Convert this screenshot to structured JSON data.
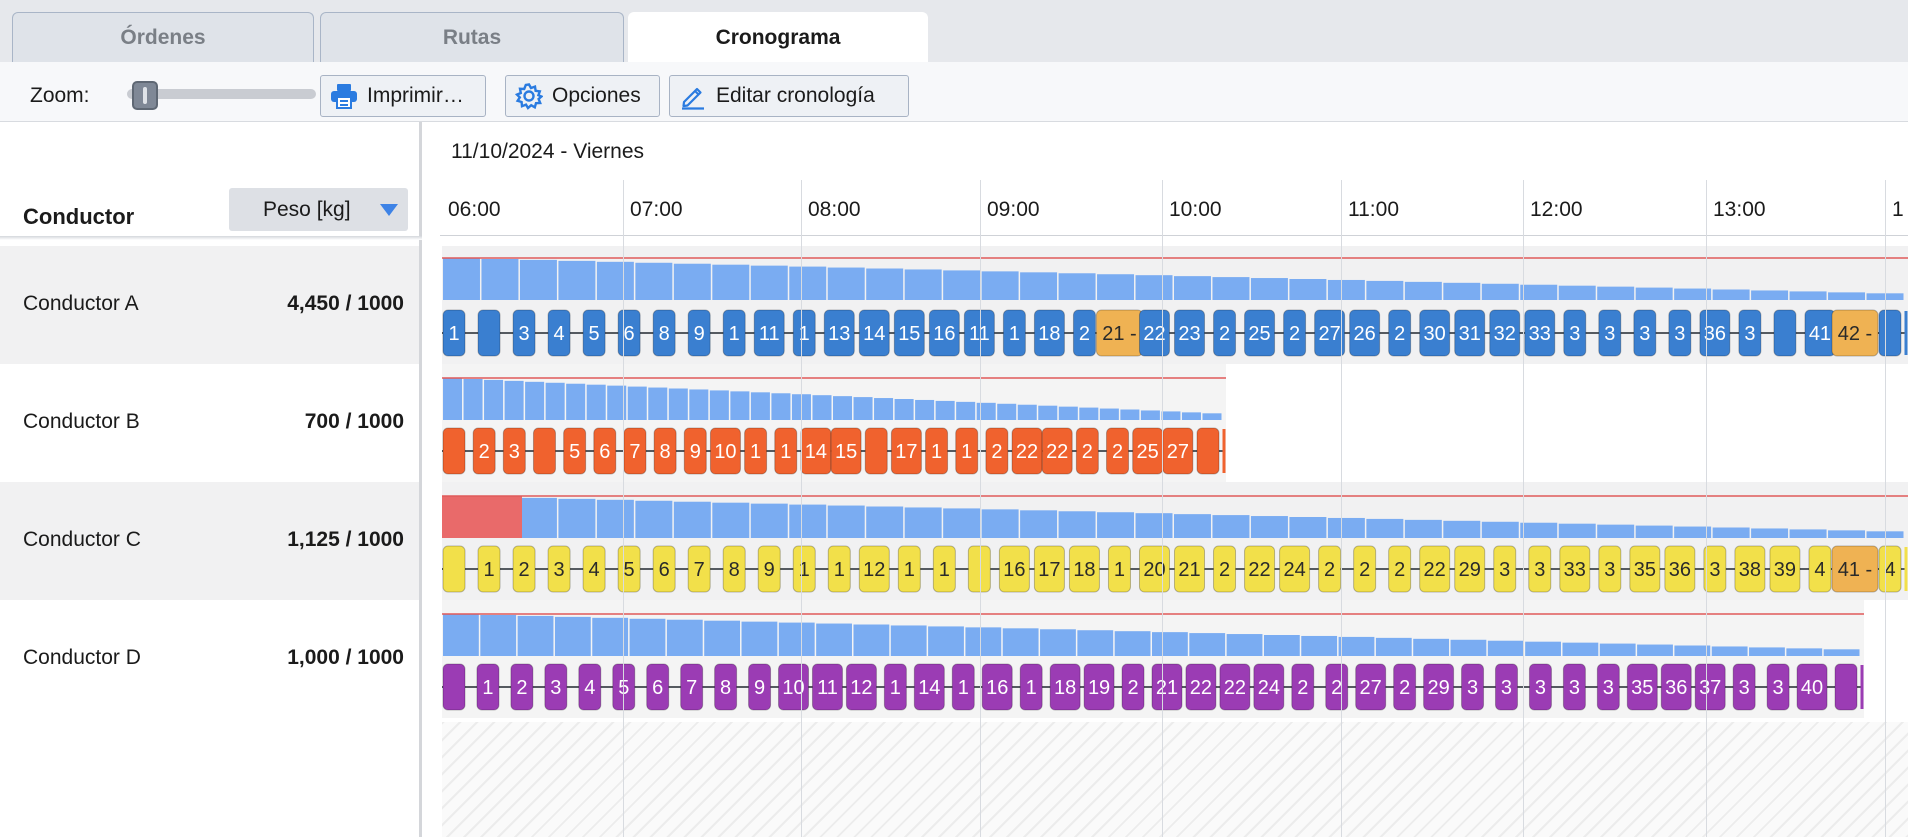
{
  "tabs": [
    {
      "label": "Órdenes"
    },
    {
      "label": "Rutas"
    },
    {
      "label": "Cronograma"
    }
  ],
  "toolbar": {
    "zoom_label": "Zoom:",
    "zoom_value": 0.05,
    "print_label": "Imprimir…",
    "options_label": "Opciones",
    "edit_label": "Editar cronología"
  },
  "left_panel": {
    "driver_header": "Conductor",
    "metric_select": "Peso [kg]"
  },
  "drivers": [
    {
      "name": "Conductor A",
      "load": "4,450 / 1000"
    },
    {
      "name": "Conductor B",
      "load": "700 / 1000"
    },
    {
      "name": "Conductor C",
      "load": "1,125 / 1000"
    },
    {
      "name": "Conductor D",
      "load": "1,000 / 1000"
    }
  ],
  "timeline": {
    "date": "11/10/2024 - Viernes",
    "hours": [
      "06:00",
      "07:00",
      "08:00",
      "09:00",
      "10:00",
      "11:00",
      "12:00",
      "13:00",
      "1"
    ]
  },
  "colors": {
    "route_a": "#3a7fd0",
    "route_b": "#f0622e",
    "route_c": "#f2e04a",
    "route_d": "#9b3cb4",
    "highlight": "#efb253",
    "load_bar": "#7aacf2",
    "overload": "#e96a6a",
    "capacity_line": "#e05a5a"
  },
  "routes": [
    {
      "driver": "Conductor A",
      "stops": [
        {
          "label": "1"
        },
        {
          "label": ""
        },
        {
          "label": "3"
        },
        {
          "label": "4"
        },
        {
          "label": "5"
        },
        {
          "label": "6"
        },
        {
          "label": "8"
        },
        {
          "label": "9"
        },
        {
          "label": "1"
        },
        {
          "label": "11"
        },
        {
          "label": "1"
        },
        {
          "label": "13"
        },
        {
          "label": "14"
        },
        {
          "label": "15"
        },
        {
          "label": "16"
        },
        {
          "label": "11"
        },
        {
          "label": "1"
        },
        {
          "label": "18"
        },
        {
          "label": "2"
        },
        {
          "label": "21 -",
          "highlight": true
        },
        {
          "label": "22"
        },
        {
          "label": "23"
        },
        {
          "label": "2"
        },
        {
          "label": "25"
        },
        {
          "label": "2"
        },
        {
          "label": "27"
        },
        {
          "label": "26"
        },
        {
          "label": "2"
        },
        {
          "label": "30"
        },
        {
          "label": "31"
        },
        {
          "label": "32"
        },
        {
          "label": "33"
        },
        {
          "label": "3"
        },
        {
          "label": "3"
        },
        {
          "label": "3"
        },
        {
          "label": "3"
        },
        {
          "label": "36"
        },
        {
          "label": "3"
        },
        {
          "label": ""
        },
        {
          "label": "41"
        },
        {
          "label": "42 -",
          "highlight": true
        },
        {
          "label": ""
        }
      ]
    },
    {
      "driver": "Conductor B",
      "stops": [
        {
          "label": ""
        },
        {
          "label": "2"
        },
        {
          "label": "3"
        },
        {
          "label": ""
        },
        {
          "label": "5"
        },
        {
          "label": "6"
        },
        {
          "label": "7"
        },
        {
          "label": "8"
        },
        {
          "label": "9"
        },
        {
          "label": "10"
        },
        {
          "label": "1"
        },
        {
          "label": "1"
        },
        {
          "label": "14"
        },
        {
          "label": "15"
        },
        {
          "label": ""
        },
        {
          "label": "17"
        },
        {
          "label": "1"
        },
        {
          "label": "1"
        },
        {
          "label": "2"
        },
        {
          "label": "22"
        },
        {
          "label": "22"
        },
        {
          "label": "2"
        },
        {
          "label": "2"
        },
        {
          "label": "25"
        },
        {
          "label": "27"
        },
        {
          "label": ""
        }
      ]
    },
    {
      "driver": "Conductor C",
      "stops": [
        {
          "label": ""
        },
        {
          "label": "1"
        },
        {
          "label": "2"
        },
        {
          "label": "3"
        },
        {
          "label": "4"
        },
        {
          "label": "5"
        },
        {
          "label": "6"
        },
        {
          "label": "7"
        },
        {
          "label": "8"
        },
        {
          "label": "9"
        },
        {
          "label": "1"
        },
        {
          "label": "1"
        },
        {
          "label": "12"
        },
        {
          "label": "1"
        },
        {
          "label": "1"
        },
        {
          "label": ""
        },
        {
          "label": "16"
        },
        {
          "label": "17"
        },
        {
          "label": "18"
        },
        {
          "label": "1"
        },
        {
          "label": "20"
        },
        {
          "label": "21"
        },
        {
          "label": "2"
        },
        {
          "label": "22"
        },
        {
          "label": "24"
        },
        {
          "label": "2"
        },
        {
          "label": "2"
        },
        {
          "label": "2"
        },
        {
          "label": "22"
        },
        {
          "label": "29"
        },
        {
          "label": "3"
        },
        {
          "label": "3"
        },
        {
          "label": "33"
        },
        {
          "label": "3"
        },
        {
          "label": "35"
        },
        {
          "label": "36"
        },
        {
          "label": "3"
        },
        {
          "label": "38"
        },
        {
          "label": "39"
        },
        {
          "label": "4"
        },
        {
          "label": "41 -",
          "highlight": true
        },
        {
          "label": "4"
        }
      ]
    },
    {
      "driver": "Conductor D",
      "stops": [
        {
          "label": ""
        },
        {
          "label": "1"
        },
        {
          "label": "2"
        },
        {
          "label": "3"
        },
        {
          "label": "4"
        },
        {
          "label": "5"
        },
        {
          "label": "6"
        },
        {
          "label": "7"
        },
        {
          "label": "8"
        },
        {
          "label": "9"
        },
        {
          "label": "10"
        },
        {
          "label": "11"
        },
        {
          "label": "12"
        },
        {
          "label": "1"
        },
        {
          "label": "14"
        },
        {
          "label": "1"
        },
        {
          "label": "16"
        },
        {
          "label": "1"
        },
        {
          "label": "18"
        },
        {
          "label": "19"
        },
        {
          "label": "2"
        },
        {
          "label": "21"
        },
        {
          "label": "22"
        },
        {
          "label": "22"
        },
        {
          "label": "24"
        },
        {
          "label": "2"
        },
        {
          "label": "2"
        },
        {
          "label": "27"
        },
        {
          "label": "2"
        },
        {
          "label": "29"
        },
        {
          "label": "3"
        },
        {
          "label": "3"
        },
        {
          "label": "3"
        },
        {
          "label": "3"
        },
        {
          "label": "3"
        },
        {
          "label": "35"
        },
        {
          "label": "36"
        },
        {
          "label": "37"
        },
        {
          "label": "3"
        },
        {
          "label": "3"
        },
        {
          "label": "40"
        },
        {
          "label": ""
        }
      ]
    }
  ]
}
